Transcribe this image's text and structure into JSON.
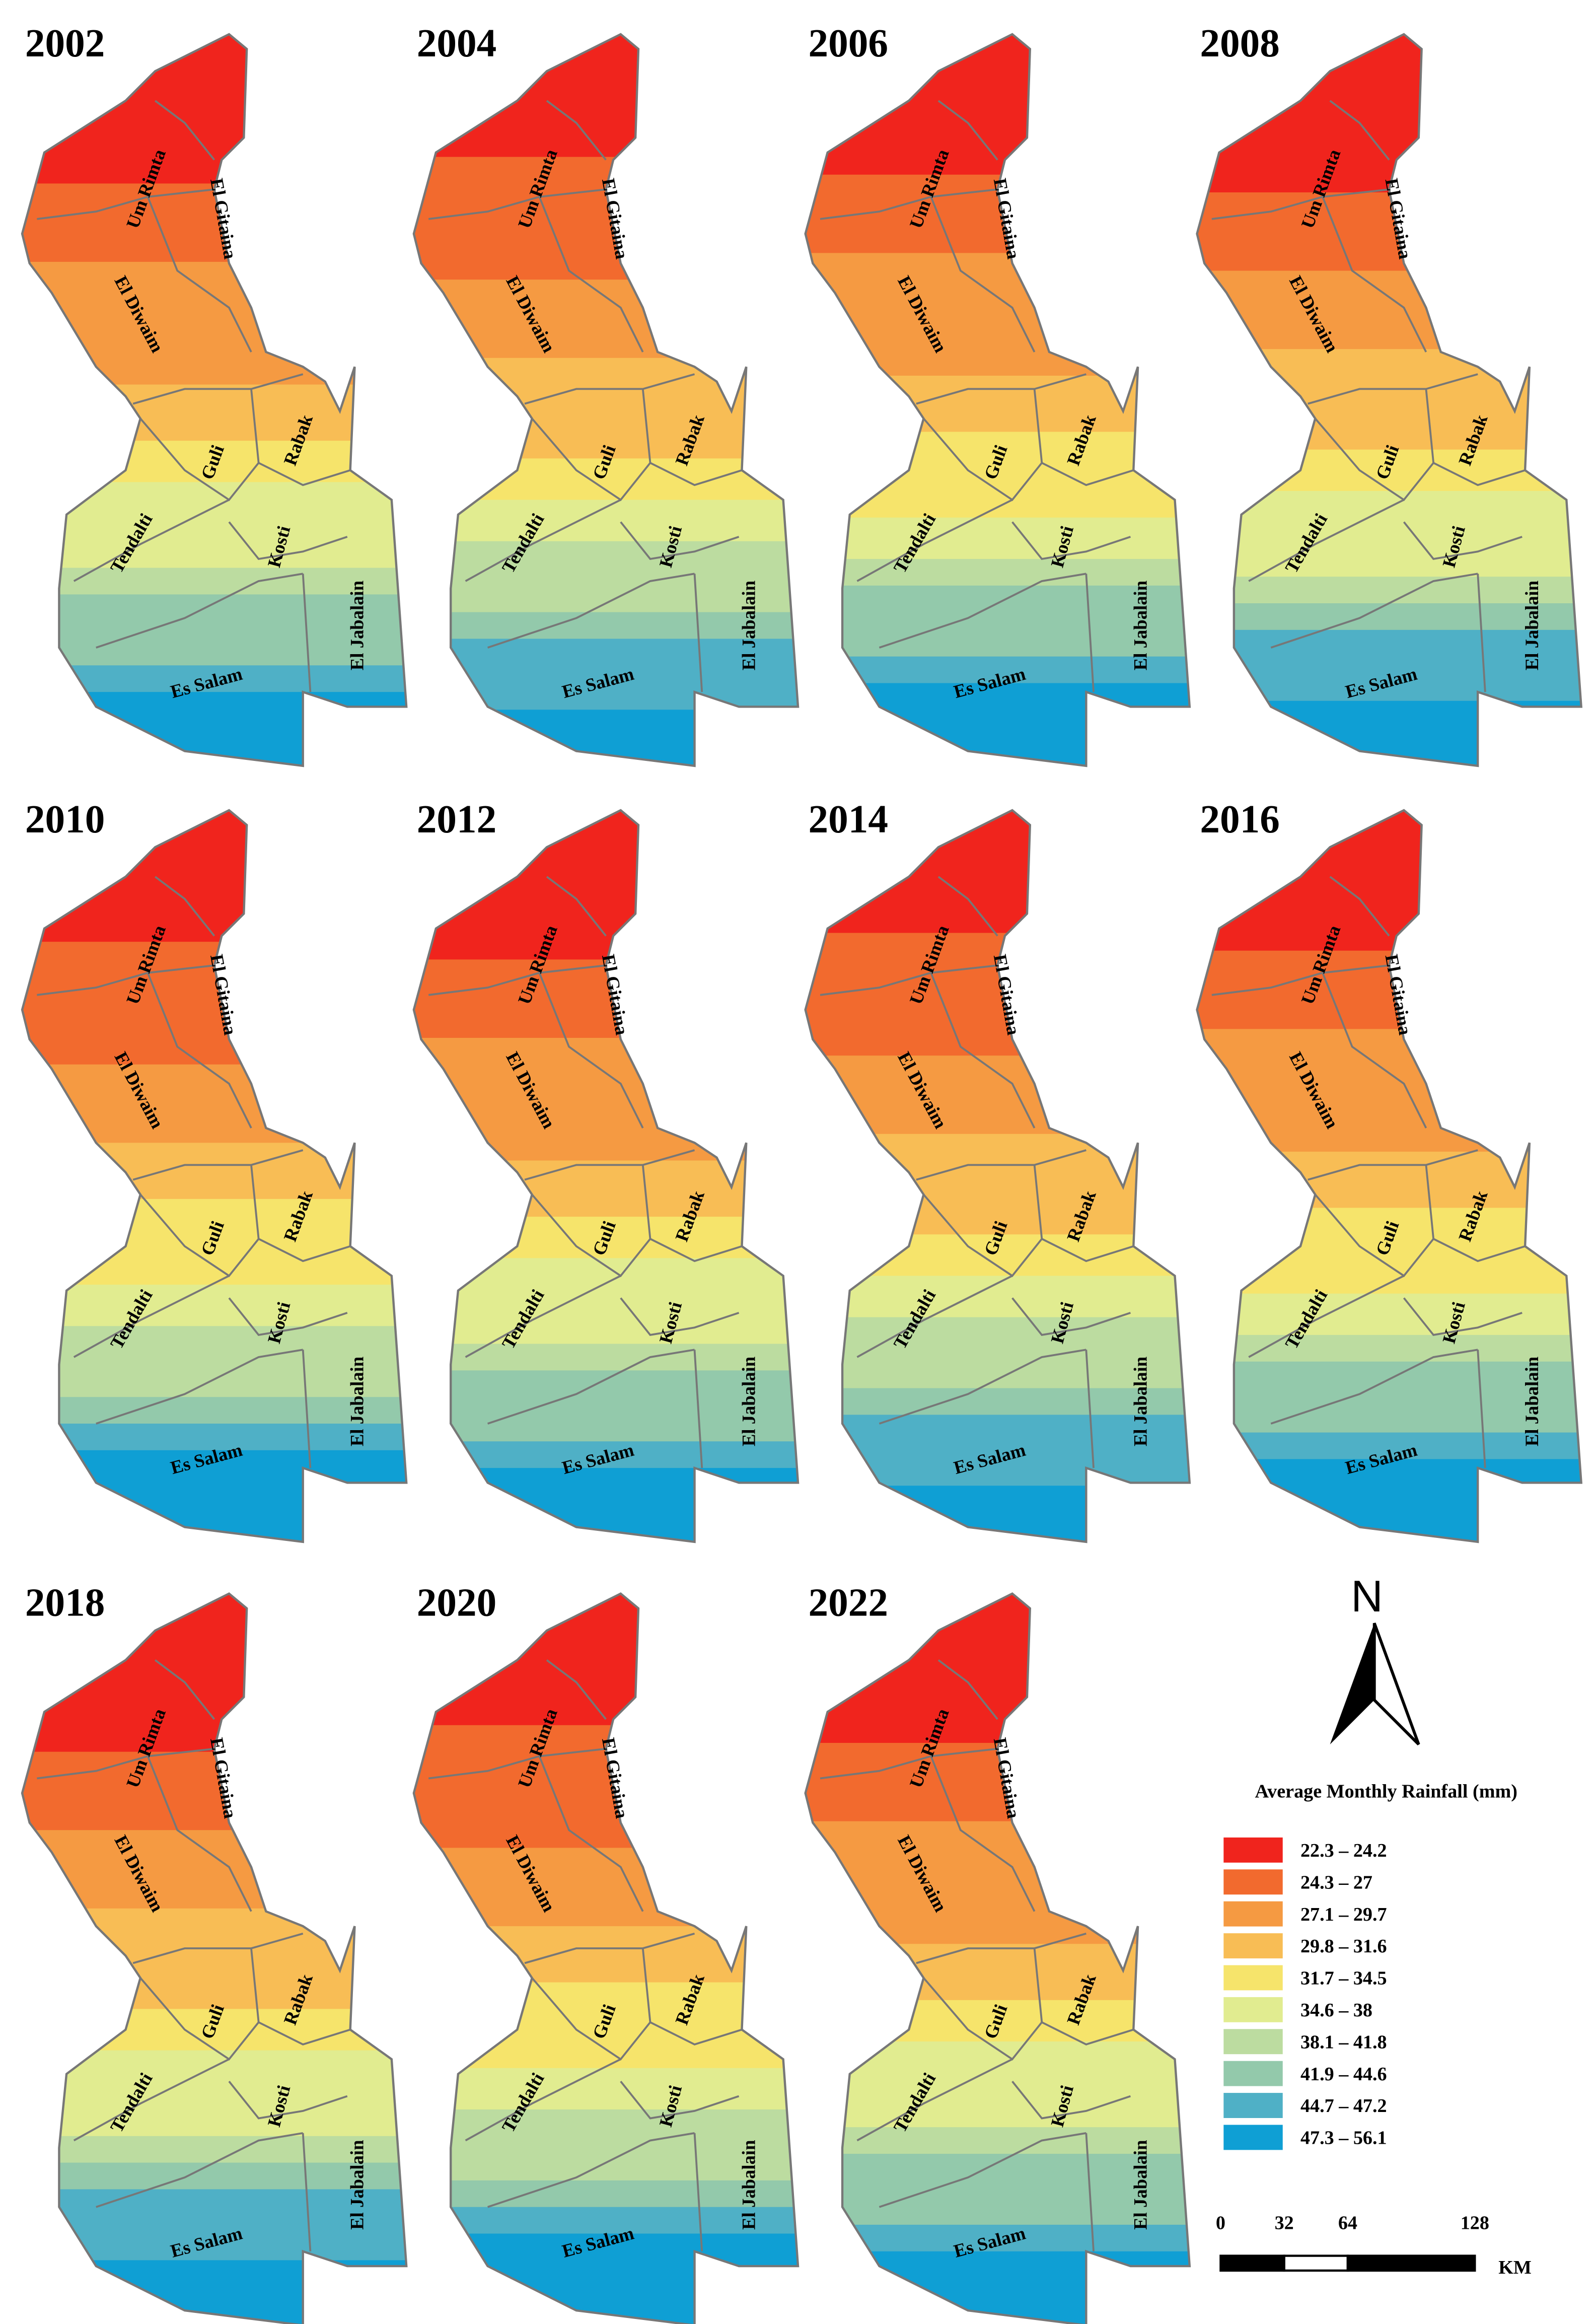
{
  "panels": [
    {
      "year": "2002"
    },
    {
      "year": "2004"
    },
    {
      "year": "2006"
    },
    {
      "year": "2008"
    },
    {
      "year": "2010"
    },
    {
      "year": "2012"
    },
    {
      "year": "2014"
    },
    {
      "year": "2016"
    },
    {
      "year": "2018"
    },
    {
      "year": "2020"
    },
    {
      "year": "2022"
    }
  ],
  "districts": [
    "Um Rimta",
    "El Gitaina",
    "El Diwaim",
    "Guli",
    "Rabak",
    "Tendalti",
    "Kosti",
    "El Jabalain",
    "Es Salam"
  ],
  "north": "N",
  "legend": {
    "title": "Average Monthly Rainfall (mm)",
    "items": [
      {
        "label": "22.3 – 24.2",
        "color": "#f0241d"
      },
      {
        "label": "24.3 – 27",
        "color": "#f26a2e"
      },
      {
        "label": "27.1 – 29.7",
        "color": "#f59a42"
      },
      {
        "label": "29.8 – 31.6",
        "color": "#f8bd55"
      },
      {
        "label": "31.7 – 34.5",
        "color": "#f6e46b"
      },
      {
        "label": "34.6 – 38",
        "color": "#e1ec90"
      },
      {
        "label": "38.1 – 41.8",
        "color": "#bcdca0"
      },
      {
        "label": "41.9 – 44.6",
        "color": "#93c9ab"
      },
      {
        "label": "44.7 – 47.2",
        "color": "#4fb0c6"
      },
      {
        "label": "47.3 – 56.1",
        "color": "#0f9fd4"
      }
    ]
  },
  "scale_bar": {
    "ticks": [
      0,
      32,
      64,
      128
    ],
    "unit": "KM"
  }
}
